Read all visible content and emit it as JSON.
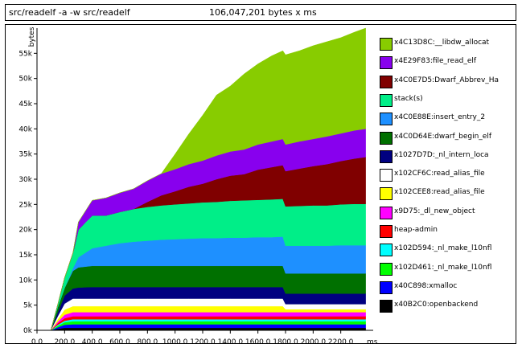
{
  "header": {
    "command": "src/readelf -a -w src/readelf",
    "total": "106,047,201 bytes x ms"
  },
  "chart_data": {
    "type": "area",
    "stacked": true,
    "ylabel": "bytes",
    "xlabel": "ms",
    "xlim": [
      0,
      2400
    ],
    "ylim": [
      0,
      60000
    ],
    "x_ticks": [
      "0.0",
      "200.0",
      "400.0",
      "600.0",
      "800.0",
      "1000.0",
      "1200.0",
      "1400.0",
      "1600.0",
      "1800.0",
      "2000.0",
      "2200.0"
    ],
    "y_ticks": [
      "0k",
      "5k",
      "10k",
      "15k",
      "20k",
      "25k",
      "30k",
      "35k",
      "40k",
      "45k",
      "50k",
      "55k"
    ],
    "x": [
      0,
      50,
      100,
      150,
      200,
      260,
      300,
      400,
      500,
      600,
      700,
      800,
      900,
      1000,
      1100,
      1200,
      1300,
      1400,
      1500,
      1600,
      1700,
      1780,
      1800,
      1900,
      2000,
      2100,
      2200,
      2300,
      2380
    ],
    "series": [
      {
        "name": "x40B2C0:openbackend",
        "color": "#000000",
        "values": [
          0,
          0,
          0,
          300,
          500,
          500,
          500,
          500,
          500,
          500,
          500,
          500,
          500,
          500,
          500,
          500,
          500,
          500,
          500,
          500,
          500,
          500,
          500,
          500,
          500,
          500,
          500,
          500,
          500
        ]
      },
      {
        "name": "x40C898:xmalloc",
        "color": "#0000ff",
        "values": [
          0,
          0,
          0,
          300,
          600,
          700,
          700,
          700,
          700,
          700,
          700,
          700,
          700,
          700,
          700,
          700,
          700,
          700,
          700,
          700,
          700,
          700,
          700,
          700,
          700,
          700,
          700,
          700,
          700
        ]
      },
      {
        "name": "x102D461:_nl_make_l10nfl",
        "color": "#00ff00",
        "values": [
          0,
          0,
          0,
          300,
          500,
          600,
          600,
          600,
          600,
          600,
          600,
          600,
          600,
          600,
          600,
          600,
          600,
          600,
          600,
          600,
          600,
          600,
          600,
          600,
          600,
          600,
          600,
          600,
          600
        ]
      },
      {
        "name": "x102D594:_nl_make_l10nfl",
        "color": "#00ffff",
        "values": [
          0,
          0,
          0,
          200,
          300,
          400,
          400,
          400,
          400,
          400,
          400,
          400,
          400,
          400,
          400,
          400,
          400,
          400,
          400,
          400,
          400,
          400,
          400,
          400,
          400,
          400,
          400,
          400,
          400
        ]
      },
      {
        "name": "heap-admin",
        "color": "#ff0000",
        "values": [
          0,
          0,
          0,
          300,
          500,
          600,
          600,
          600,
          600,
          600,
          600,
          600,
          600,
          600,
          600,
          600,
          600,
          600,
          600,
          600,
          600,
          600,
          600,
          600,
          600,
          600,
          600,
          600,
          600
        ]
      },
      {
        "name": "x9D75:_dl_new_object",
        "color": "#ff00ff",
        "values": [
          0,
          0,
          0,
          300,
          700,
          800,
          800,
          800,
          800,
          800,
          800,
          800,
          800,
          800,
          800,
          800,
          800,
          800,
          800,
          800,
          800,
          800,
          800,
          800,
          800,
          800,
          800,
          800,
          800
        ]
      },
      {
        "name": "x102CEE8:read_alias_file",
        "color": "#ffff00",
        "values": [
          0,
          0,
          0,
          500,
          1000,
          1200,
          1200,
          1200,
          1200,
          1200,
          1200,
          1200,
          1200,
          1200,
          1200,
          1200,
          1200,
          1200,
          1200,
          1200,
          1200,
          1200,
          600,
          600,
          600,
          600,
          600,
          600,
          600
        ]
      },
      {
        "name": "x102CF6C:read_alias_file",
        "color": "#ffffff",
        "values": [
          0,
          0,
          0,
          600,
          1200,
          1500,
          1500,
          1500,
          1500,
          1500,
          1500,
          1500,
          1500,
          1500,
          1500,
          1500,
          1500,
          1500,
          1500,
          1500,
          1500,
          1500,
          1000,
          1000,
          1000,
          1000,
          1000,
          1000,
          1000
        ]
      },
      {
        "name": "x1027D7D:_nl_intern_loca",
        "color": "#000080",
        "values": [
          0,
          0,
          0,
          800,
          1600,
          2000,
          2200,
          2300,
          2300,
          2300,
          2300,
          2300,
          2300,
          2300,
          2300,
          2300,
          2300,
          2300,
          2300,
          2300,
          2300,
          2300,
          2100,
          2100,
          2100,
          2100,
          2100,
          2100,
          2100
        ]
      },
      {
        "name": "x4C0D64E:dwarf_begin_elf",
        "color": "#007000",
        "values": [
          0,
          0,
          0,
          1000,
          1500,
          3500,
          4000,
          4200,
          4200,
          4200,
          4200,
          4200,
          4200,
          4200,
          4200,
          4200,
          4200,
          4200,
          4200,
          4200,
          4200,
          4200,
          4000,
          4000,
          4000,
          4000,
          4000,
          4000,
          4000
        ]
      },
      {
        "name": "x4C0E88E:insert_entry_2",
        "color": "#1e90ff",
        "values": [
          0,
          0,
          0,
          0,
          0,
          500,
          2000,
          3500,
          4000,
          4500,
          4800,
          5000,
          5200,
          5300,
          5400,
          5500,
          5500,
          5600,
          5600,
          5700,
          5700,
          5800,
          5500,
          5500,
          5500,
          5500,
          5600,
          5600,
          5600
        ]
      },
      {
        "name": "stack(s)",
        "color": "#00ee88",
        "values": [
          0,
          0,
          0,
          500,
          2000,
          3000,
          5500,
          6500,
          6000,
          6200,
          6500,
          6700,
          6800,
          6900,
          7000,
          7100,
          7200,
          7300,
          7400,
          7400,
          7500,
          7500,
          7800,
          7900,
          8000,
          8000,
          8100,
          8200,
          8200
        ]
      },
      {
        "name": "x4C0E7D5:Dwarf_Abbrev_Ha",
        "color": "#800000",
        "values": [
          0,
          0,
          0,
          0,
          0,
          0,
          0,
          0,
          0,
          0,
          0,
          1000,
          2000,
          2600,
          3300,
          3700,
          4500,
          5000,
          5200,
          6000,
          6400,
          6700,
          7000,
          7400,
          7800,
          8200,
          8600,
          9000,
          9300
        ]
      },
      {
        "name": "x4E29F83:file_read_elf",
        "color": "#8800ee",
        "values": [
          0,
          0,
          0,
          0,
          0,
          0,
          1500,
          3000,
          3500,
          3800,
          4000,
          4200,
          4300,
          4400,
          4500,
          4600,
          4700,
          4800,
          4900,
          5000,
          5100,
          5200,
          5300,
          5400,
          5400,
          5500,
          5500,
          5600,
          5600
        ]
      },
      {
        "name": "x4C13D8C:__libdw_allocat",
        "color": "#88cc00",
        "values": [
          0,
          0,
          0,
          0,
          0,
          0,
          0,
          0,
          0,
          0,
          0,
          0,
          0,
          3000,
          6000,
          9000,
          12000,
          13000,
          15000,
          16000,
          17000,
          17500,
          17800,
          18000,
          18500,
          18800,
          19000,
          19500,
          20000
        ]
      }
    ]
  }
}
